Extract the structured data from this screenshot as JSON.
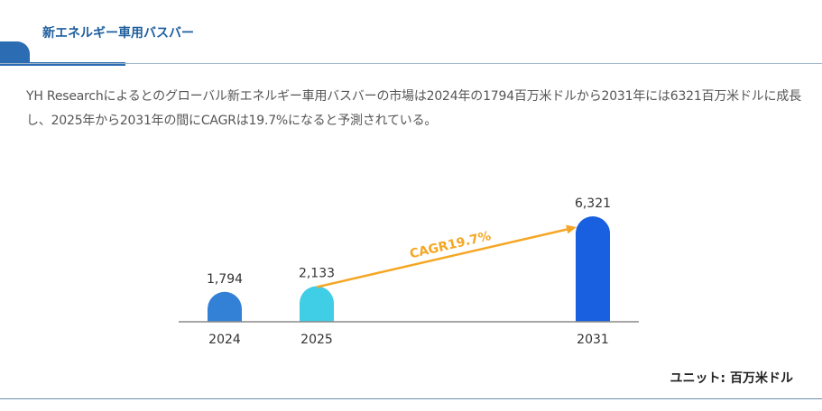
{
  "header": {
    "title": "新エネルギー車用バスバー"
  },
  "description": "YH Researchによるとのグローバル新エネルギー車用バスバーの市場は2024年の1794百万米ドルから2031年には6321百万米ドルに成長し、2025年から2031年の間にCAGRは19.7%になると予測されている。",
  "unit_label": "ユニット: 百万米ドル",
  "chart_data": {
    "type": "bar",
    "categories": [
      "2024",
      "2025",
      "2031"
    ],
    "values": [
      1794,
      2133,
      6321
    ],
    "data_labels": [
      "1,794",
      "2,133",
      "6,321"
    ],
    "annotation": "CAGR19.7%",
    "ylim": [
      0,
      6321
    ],
    "title": "",
    "xlabel": "",
    "ylabel": "",
    "colors": [
      "#3381d6",
      "#40cde6",
      "#1960e0"
    ],
    "arrow_color": "#f5a623",
    "grid": false
  }
}
